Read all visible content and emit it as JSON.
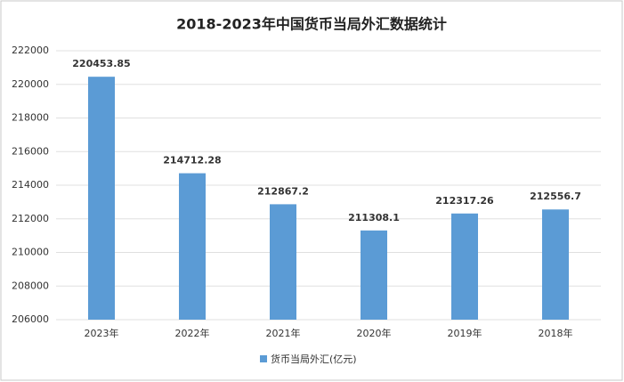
{
  "chart_data": {
    "type": "bar",
    "title": "2018-2023年中国货币当局外汇数据统计",
    "categories": [
      "2023年",
      "2022年",
      "2021年",
      "2020年",
      "2019年",
      "2018年"
    ],
    "series": [
      {
        "name": "货币当局外汇(亿元)",
        "color": "#5b9bd5",
        "values": [
          220453.85,
          214712.28,
          212867.2,
          211308.1,
          212317.26,
          212556.7
        ]
      }
    ],
    "ylim": [
      206000,
      222000
    ],
    "yticks": [
      206000,
      208000,
      210000,
      212000,
      214000,
      216000,
      218000,
      220000,
      222000
    ],
    "grid": true,
    "legend": "bottom"
  }
}
